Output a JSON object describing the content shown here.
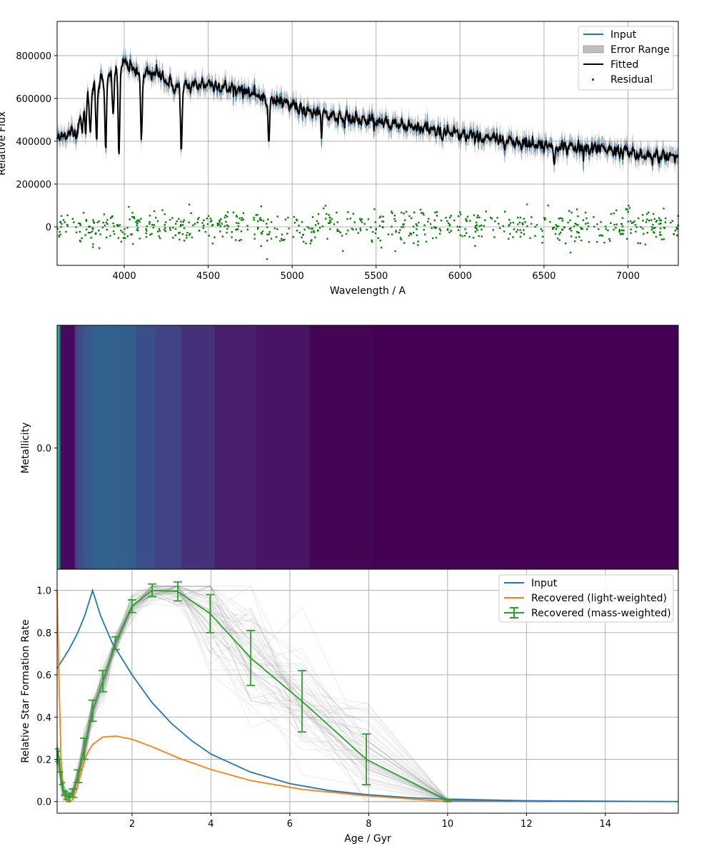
{
  "chart_data": [
    {
      "type": "line",
      "name_panel": "spectrum",
      "xlabel": "Wavelength / A",
      "ylabel": "Relative Flux",
      "xlim": [
        3600,
        7300
      ],
      "ylim": [
        -180000,
        960000
      ],
      "xticks": [
        4000,
        4500,
        5000,
        5500,
        6000,
        6500,
        7000
      ],
      "yticks": [
        0,
        200000,
        400000,
        600000,
        800000
      ],
      "grid": true,
      "legend_position": "top-right",
      "legend": [
        "Input",
        "Error Range",
        "Fitted",
        "Residual"
      ],
      "colors": {
        "input": "#1f77b4",
        "error": "#808080",
        "fitted": "#000000",
        "residual": "#008000"
      },
      "continuum_points": {
        "x": [
          3600,
          3700,
          3800,
          3900,
          4000,
          4100,
          4200,
          4300,
          4400,
          4500,
          4600,
          4700,
          4800,
          4900,
          5000,
          5100,
          5200,
          5300,
          5400,
          5500,
          5600,
          5700,
          5800,
          5900,
          6000,
          6200,
          6400,
          6600,
          6800,
          7000,
          7100,
          7200,
          7300
        ],
        "y": [
          420000,
          440000,
          650000,
          700000,
          770000,
          710000,
          720000,
          650000,
          660000,
          670000,
          650000,
          640000,
          610000,
          590000,
          570000,
          540000,
          525000,
          510000,
          500000,
          490000,
          480000,
          470000,
          460000,
          445000,
          430000,
          410000,
          390000,
          375000,
          365000,
          350000,
          325000,
          330000,
          330000
        ]
      },
      "absorption_lines": [
        {
          "x": 3720,
          "depth": 60000
        },
        {
          "x": 3750,
          "depth": 90000
        },
        {
          "x": 3770,
          "depth": 150000
        },
        {
          "x": 3798,
          "depth": 200000
        },
        {
          "x": 3835,
          "depth": 260000
        },
        {
          "x": 3889,
          "depth": 310000
        },
        {
          "x": 3934,
          "depth": 200000
        },
        {
          "x": 3968,
          "depth": 420000
        },
        {
          "x": 4102,
          "depth": 300000
        },
        {
          "x": 4340,
          "depth": 280000
        },
        {
          "x": 4861,
          "depth": 200000
        },
        {
          "x": 5175,
          "depth": 60000
        },
        {
          "x": 5890,
          "depth": 50000
        },
        {
          "x": 6563,
          "depth": 80000
        }
      ],
      "residual": {
        "mean": 0,
        "spread": 40000,
        "count": 700
      }
    },
    {
      "type": "heatmap",
      "name_panel": "metallicity",
      "ylabel": "Metallicity",
      "yticks": [
        "0.0"
      ],
      "xlim": [
        0.1,
        15.85
      ],
      "bins": [
        {
          "x0": 0.1,
          "x1": 0.14,
          "color": "#35b779"
        },
        {
          "x0": 0.14,
          "x1": 0.18,
          "color": "#21918c"
        },
        {
          "x0": 0.18,
          "x1": 0.28,
          "color": "#440e5f"
        },
        {
          "x0": 0.28,
          "x1": 0.55,
          "color": "#46095e"
        },
        {
          "x0": 0.55,
          "x1": 0.62,
          "color": "#424086"
        },
        {
          "x0": 0.62,
          "x1": 0.78,
          "color": "#3c4d8a"
        },
        {
          "x0": 0.78,
          "x1": 1.0,
          "color": "#37598b"
        },
        {
          "x0": 1.0,
          "x1": 1.6,
          "color": "#31618d"
        },
        {
          "x0": 1.6,
          "x1": 2.1,
          "color": "#335f8d"
        },
        {
          "x0": 2.1,
          "x1": 2.6,
          "color": "#3a4e8a"
        },
        {
          "x0": 2.6,
          "x1": 3.25,
          "color": "#404386"
        },
        {
          "x0": 3.25,
          "x1": 4.1,
          "color": "#45307a"
        },
        {
          "x0": 4.1,
          "x1": 5.15,
          "color": "#471f6d"
        },
        {
          "x0": 5.15,
          "x1": 6.5,
          "color": "#481565"
        },
        {
          "x0": 6.5,
          "x1": 8.15,
          "color": "#450555"
        },
        {
          "x0": 8.15,
          "x1": 15.85,
          "color": "#440154"
        }
      ]
    },
    {
      "type": "line",
      "name_panel": "sfh",
      "xlabel": "Age / Gyr",
      "ylabel": "Relative Star Formation Rate",
      "xlim": [
        0.1,
        15.85
      ],
      "ylim": [
        -0.055,
        1.1
      ],
      "xticks": [
        2,
        4,
        6,
        8,
        10,
        12,
        14
      ],
      "yticks": [
        0.0,
        0.2,
        0.4,
        0.6,
        0.8,
        1.0
      ],
      "grid": true,
      "legend_position": "top-right",
      "legend": [
        "Input",
        "Recovered (light-weighted)",
        "Recovered (mass-weighted)"
      ],
      "series": [
        {
          "name": "Input",
          "color": "#1f77b4",
          "x": [
            0.1,
            0.2,
            0.4,
            0.6,
            0.8,
            1.0,
            1.2,
            1.5,
            2.0,
            2.5,
            3.0,
            3.5,
            4.0,
            5.0,
            6.0,
            7.0,
            8.0,
            9.0,
            10.0,
            12.0,
            15.85
          ],
          "y": [
            0.63,
            0.66,
            0.72,
            0.79,
            0.88,
            1.0,
            0.88,
            0.75,
            0.6,
            0.47,
            0.37,
            0.29,
            0.225,
            0.14,
            0.085,
            0.052,
            0.032,
            0.019,
            0.011,
            0.004,
            0.0
          ]
        },
        {
          "name": "Recovered (light-weighted)",
          "color": "#ff7f0e",
          "x": [
            0.1,
            0.15,
            0.2,
            0.25,
            0.3,
            0.35,
            0.4,
            0.5,
            0.6,
            0.7,
            0.8,
            0.9,
            1.0,
            1.25,
            1.6,
            2.0,
            2.5,
            3.2,
            4.0,
            5.0,
            6.3,
            7.9,
            10.0
          ],
          "y": [
            1.0,
            0.55,
            0.2,
            0.08,
            0.02,
            0.0,
            0.0,
            0.01,
            0.06,
            0.13,
            0.2,
            0.24,
            0.27,
            0.305,
            0.31,
            0.295,
            0.26,
            0.205,
            0.152,
            0.1,
            0.058,
            0.028,
            0.0
          ]
        },
        {
          "name": "Recovered (mass-weighted)",
          "color": "#2ca02c",
          "x": [
            0.1,
            0.13,
            0.16,
            0.2,
            0.25,
            0.32,
            0.4,
            0.5,
            0.63,
            0.79,
            1.0,
            1.26,
            1.58,
            2.0,
            2.51,
            3.16,
            3.98,
            5.01,
            6.31,
            7.94,
            10.0
          ],
          "y": [
            0.22,
            0.21,
            0.17,
            0.11,
            0.06,
            0.03,
            0.02,
            0.04,
            0.12,
            0.25,
            0.43,
            0.57,
            0.75,
            0.925,
            1.0,
            0.995,
            0.89,
            0.68,
            0.475,
            0.2,
            0.005
          ],
          "err": [
            0.03,
            0.03,
            0.03,
            0.03,
            0.03,
            0.02,
            0.02,
            0.02,
            0.03,
            0.05,
            0.05,
            0.05,
            0.03,
            0.03,
            0.03,
            0.045,
            0.09,
            0.13,
            0.145,
            0.12,
            0.005
          ]
        }
      ],
      "samples": {
        "count": 60,
        "color": "#808080"
      }
    }
  ]
}
